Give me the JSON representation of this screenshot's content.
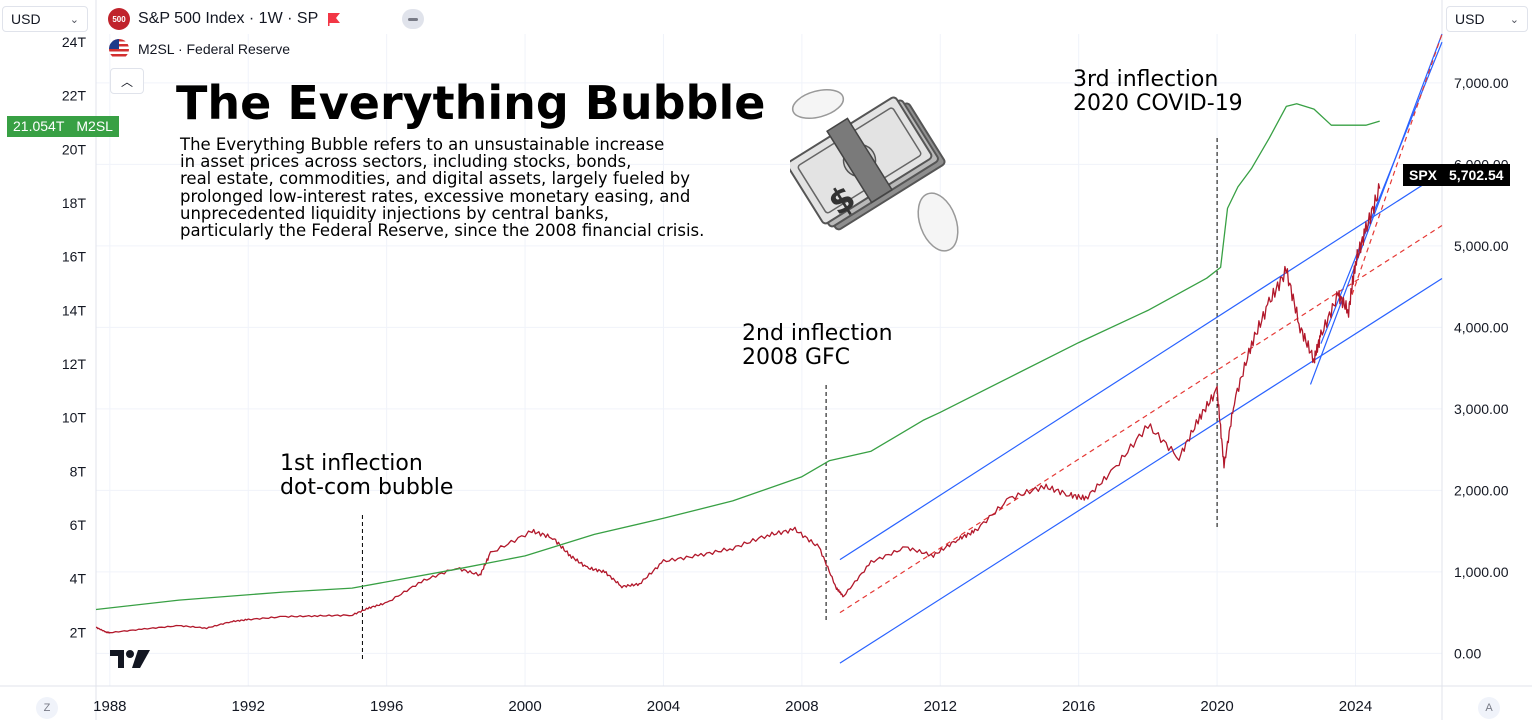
{
  "header": {
    "currency_left": "USD",
    "currency_right": "USD",
    "symbol_badge": "500",
    "symbol_title": "S&P 500 Index · 1W · SP",
    "secondary_series": "M2SL · Federal Reserve"
  },
  "overlay": {
    "title": "The Everything Bubble",
    "description_lines": [
      "The Everything Bubble refers to an unsustainable increase",
      "in asset prices across sectors, including stocks, bonds,",
      "real estate, commodities, and digital assets, largely fueled by",
      "prolonged low-interest rates, excessive monetary easing, and",
      "unprecedented liquidity injections by central banks,",
      "particularly the Federal Reserve, since the 2008 financial crisis."
    ],
    "annotations": [
      {
        "line1": "1st inflection",
        "line2": "dot-com bubble"
      },
      {
        "line1": "2nd inflection",
        "line2": "2008 GFC"
      },
      {
        "line1": "3rd inflection",
        "line2": "2020 COVID-19"
      }
    ]
  },
  "badges": {
    "m2_value": "21.054T",
    "m2_label": "M2SL",
    "spx_label": "SPX",
    "spx_value": "5,702.54"
  },
  "footer": {
    "left_button": "Z",
    "right_button": "A"
  },
  "colors": {
    "spx": "#b2182b",
    "m2": "#38a044",
    "channel": "#2962ff",
    "trend_dashed": "#e53935",
    "grid": "#f0f3fa"
  },
  "chart_data": {
    "type": "line",
    "xlabel": "",
    "x_ticks": [
      "1988",
      "1992",
      "1996",
      "2000",
      "2004",
      "2008",
      "2012",
      "2016",
      "2020",
      "2024"
    ],
    "xlim": [
      1987.6,
      2026.5
    ],
    "y_left": {
      "series": "M2SL",
      "ticks": [
        "2T",
        "4T",
        "6T",
        "8T",
        "10T",
        "12T",
        "14T",
        "16T",
        "18T",
        "20T",
        "22T",
        "24T"
      ],
      "ylim": [
        0.0,
        24.3
      ]
    },
    "y_right": {
      "series": "SPX",
      "ticks": [
        "0.00",
        "1,000.00",
        "2,000.00",
        "3,000.00",
        "4,000.00",
        "5,000.00",
        "6,000.00",
        "7,000.00"
      ],
      "ylim": [
        -400,
        7600
      ]
    },
    "series": [
      {
        "name": "SPX",
        "axis": "right",
        "x": [
          1987.6,
          1987.9,
          1988.0,
          1989.0,
          1990.0,
          1990.8,
          1991.5,
          1992.0,
          1993.0,
          1994.0,
          1995.0,
          1995.5,
          1996.0,
          1997.0,
          1998.0,
          1998.7,
          1999.0,
          2000.2,
          2000.8,
          2001.3,
          2001.8,
          2002.3,
          2002.8,
          2003.3,
          2004.0,
          2005.0,
          2006.0,
          2007.0,
          2007.8,
          2008.5,
          2009.0,
          2009.2,
          2010.0,
          2011.0,
          2011.8,
          2012.5,
          2013.0,
          2014.0,
          2015.0,
          2015.7,
          2016.2,
          2017.0,
          2018.0,
          2018.9,
          2019.5,
          2020.0,
          2020.2,
          2020.5,
          2021.0,
          2021.5,
          2022.0,
          2022.4,
          2022.8,
          2023.0,
          2023.5,
          2023.8,
          2024.0,
          2024.3,
          2024.7
        ],
        "values": [
          320,
          260,
          255,
          300,
          340,
          310,
          390,
          415,
          450,
          460,
          470,
          560,
          620,
          880,
          1050,
          960,
          1230,
          1500,
          1420,
          1200,
          1050,
          1000,
          820,
          850,
          1130,
          1200,
          1290,
          1450,
          1520,
          1300,
          800,
          700,
          1120,
          1300,
          1200,
          1400,
          1500,
          1900,
          2050,
          1950,
          1900,
          2250,
          2800,
          2400,
          2900,
          3230,
          2300,
          3100,
          3800,
          4300,
          4700,
          4000,
          3600,
          3900,
          4400,
          4200,
          4800,
          5200,
          5702.54
        ]
      },
      {
        "name": "M2SL",
        "axis": "left",
        "x": [
          1987.6,
          1990.0,
          1993.0,
          1995.0,
          1998.0,
          2000.0,
          2002.0,
          2004.0,
          2006.0,
          2008.0,
          2008.8,
          2010.0,
          2011.5,
          2012.0,
          2014.0,
          2016.0,
          2018.0,
          2019.7,
          2020.1,
          2020.3,
          2020.6,
          2021.0,
          2021.5,
          2022.0,
          2022.3,
          2022.8,
          2023.3,
          2023.8,
          2024.3,
          2024.7
        ],
        "values": [
          2.85,
          3.2,
          3.5,
          3.65,
          4.35,
          4.85,
          5.65,
          6.25,
          6.9,
          7.8,
          8.4,
          8.75,
          9.9,
          10.2,
          11.5,
          12.8,
          14.0,
          15.2,
          15.6,
          17.8,
          18.6,
          19.3,
          20.4,
          21.6,
          21.7,
          21.5,
          20.9,
          20.9,
          20.9,
          21.054
        ]
      }
    ],
    "trendlines": [
      {
        "style": "solid",
        "axis": "right",
        "from": [
          2009.1,
          1150
        ],
        "to": [
          2026.5,
          5900
        ]
      },
      {
        "style": "solid",
        "axis": "right",
        "from": [
          2009.1,
          -120
        ],
        "to": [
          2026.5,
          4600
        ]
      },
      {
        "style": "dashed",
        "axis": "right",
        "from": [
          2009.1,
          500
        ],
        "to": [
          2026.5,
          5250
        ]
      },
      {
        "style": "solid",
        "axis": "right",
        "from": [
          2022.7,
          3300
        ],
        "to": [
          2026.5,
          7600
        ]
      },
      {
        "style": "solid",
        "axis": "right",
        "from": [
          2023.0,
          3800
        ],
        "to": [
          2026.5,
          7500
        ]
      },
      {
        "style": "dashed",
        "axis": "right",
        "from": [
          2023.9,
          4400
        ],
        "to": [
          2026.5,
          7600
        ]
      }
    ],
    "event_markers": [
      {
        "x": 1995.3,
        "label_index": 0
      },
      {
        "x": 2008.7,
        "label_index": 1
      },
      {
        "x": 2020.0,
        "label_index": 2
      }
    ]
  }
}
